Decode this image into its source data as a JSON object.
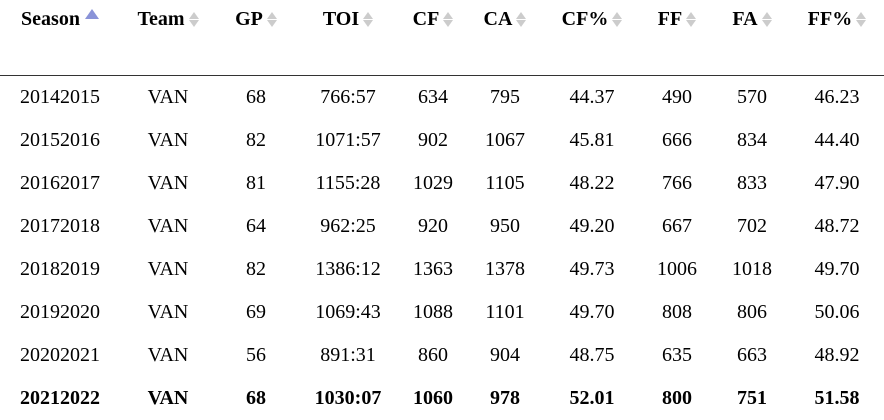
{
  "table": {
    "columns": [
      {
        "label": "Season",
        "sort": "asc"
      },
      {
        "label": "Team",
        "sort": "none"
      },
      {
        "label": "GP",
        "sort": "none"
      },
      {
        "label": "TOI",
        "sort": "none"
      },
      {
        "label": "CF",
        "sort": "none"
      },
      {
        "label": "CA",
        "sort": "none"
      },
      {
        "label": "CF%",
        "sort": "none"
      },
      {
        "label": "FF",
        "sort": "none"
      },
      {
        "label": "FA",
        "sort": "none"
      },
      {
        "label": "FF%",
        "sort": "none"
      }
    ],
    "rows": [
      {
        "bold": false,
        "cells": [
          "20142015",
          "VAN",
          "68",
          "766:57",
          "634",
          "795",
          "44.37",
          "490",
          "570",
          "46.23"
        ]
      },
      {
        "bold": false,
        "cells": [
          "20152016",
          "VAN",
          "82",
          "1071:57",
          "902",
          "1067",
          "45.81",
          "666",
          "834",
          "44.40"
        ]
      },
      {
        "bold": false,
        "cells": [
          "20162017",
          "VAN",
          "81",
          "1155:28",
          "1029",
          "1105",
          "48.22",
          "766",
          "833",
          "47.90"
        ]
      },
      {
        "bold": false,
        "cells": [
          "20172018",
          "VAN",
          "64",
          "962:25",
          "920",
          "950",
          "49.20",
          "667",
          "702",
          "48.72"
        ]
      },
      {
        "bold": false,
        "cells": [
          "20182019",
          "VAN",
          "82",
          "1386:12",
          "1363",
          "1378",
          "49.73",
          "1006",
          "1018",
          "49.70"
        ]
      },
      {
        "bold": false,
        "cells": [
          "20192020",
          "VAN",
          "69",
          "1069:43",
          "1088",
          "1101",
          "49.70",
          "808",
          "806",
          "50.06"
        ]
      },
      {
        "bold": false,
        "cells": [
          "20202021",
          "VAN",
          "56",
          "891:31",
          "860",
          "904",
          "48.75",
          "635",
          "663",
          "48.92"
        ]
      },
      {
        "bold": true,
        "cells": [
          "20212022",
          "VAN",
          "68",
          "1030:07",
          "1060",
          "978",
          "52.01",
          "800",
          "751",
          "51.58"
        ]
      }
    ],
    "colors": {
      "active_sort_arrow": "#8a93d8",
      "inactive_sort_arrow": "#cccccc",
      "header_rule": "#333333",
      "text": "#000000"
    }
  }
}
